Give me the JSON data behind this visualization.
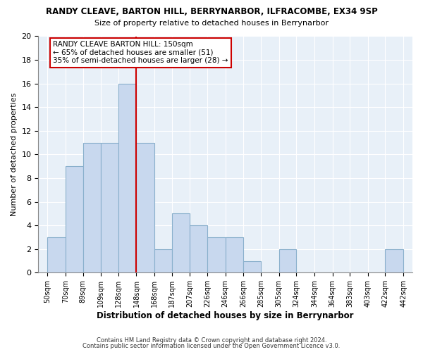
{
  "title": "RANDY CLEAVE, BARTON HILL, BERRYNARBOR, ILFRACOMBE, EX34 9SP",
  "subtitle": "Size of property relative to detached houses in Berrynarbor",
  "xlabel": "Distribution of detached houses by size in Berrynarbor",
  "ylabel": "Number of detached properties",
  "bar_values": [
    3,
    9,
    11,
    11,
    16,
    11,
    2,
    5,
    4,
    3,
    3,
    1,
    0,
    2,
    0,
    0,
    0,
    0,
    0,
    2
  ],
  "bin_edges": [
    50,
    70,
    89,
    109,
    128,
    148,
    168,
    187,
    207,
    226,
    246,
    266,
    285,
    305,
    324,
    344,
    364,
    383,
    403,
    422,
    442
  ],
  "tick_labels": [
    "50sqm",
    "70sqm",
    "89sqm",
    "109sqm",
    "128sqm",
    "148sqm",
    "168sqm",
    "187sqm",
    "207sqm",
    "226sqm",
    "246sqm",
    "266sqm",
    "285sqm",
    "305sqm",
    "324sqm",
    "344sqm",
    "364sqm",
    "383sqm",
    "403sqm",
    "422sqm",
    "442sqm"
  ],
  "bar_color": "#c8d8ee",
  "bar_edge_color": "#8ab0cc",
  "grid_color": "#c8d8ee",
  "bg_color": "#e8f0f8",
  "annotation_box_bg": "#ffffff",
  "annotation_box_edge": "#cc0000",
  "vline_color": "#cc0000",
  "vline_x_idx": 5,
  "annotation_title": "RANDY CLEAVE BARTON HILL: 150sqm",
  "annotation_line1": "← 65% of detached houses are smaller (51)",
  "annotation_line2": "35% of semi-detached houses are larger (28) →",
  "ylim": [
    0,
    20
  ],
  "yticks": [
    0,
    2,
    4,
    6,
    8,
    10,
    12,
    14,
    16,
    18,
    20
  ],
  "footer1": "Contains HM Land Registry data © Crown copyright and database right 2024.",
  "footer2": "Contains public sector information licensed under the Open Government Licence v3.0."
}
